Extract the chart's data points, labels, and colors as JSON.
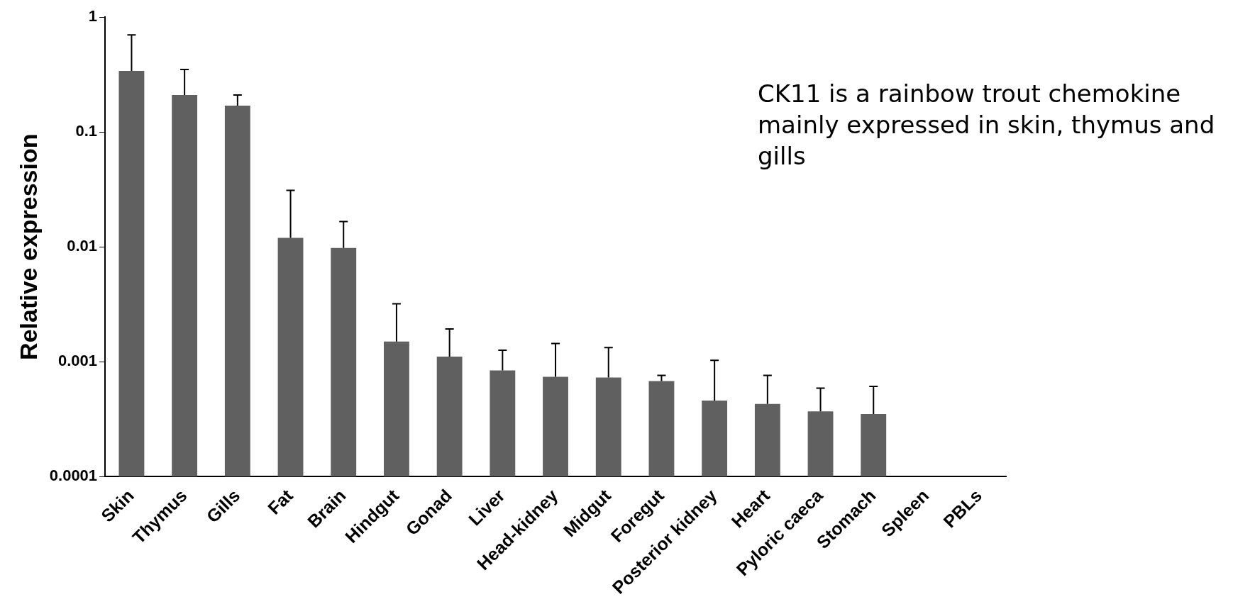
{
  "chart_data": {
    "type": "bar",
    "ylabel": "Relative expression",
    "categories": [
      "Skin",
      "Thymus",
      "Gills",
      "Fat",
      "Brain",
      "Hindgut",
      "Gonad",
      "Liver",
      "Head-kidney",
      "Midgut",
      "Foregut",
      "Posterior kidney",
      "Heart",
      "Pyloric caeca",
      "Stomach",
      "Spleen",
      "PBLs"
    ],
    "values": [
      0.34,
      0.21,
      0.17,
      0.012,
      0.0098,
      0.0015,
      0.00111,
      0.00084,
      0.00074,
      0.00073,
      0.00068,
      0.00046,
      0.00043,
      0.00037,
      0.00035,
      0.0001,
      0.0001
    ],
    "errors": [
      [
        0.34,
        0.7
      ],
      [
        0.21,
        0.35
      ],
      [
        0.17,
        0.21
      ],
      [
        0.012,
        0.031
      ],
      [
        0.0098,
        0.0166
      ],
      [
        0.0015,
        0.0032
      ],
      [
        0.00111,
        0.00193
      ],
      [
        0.00084,
        0.00126
      ],
      [
        0.00074,
        0.00144
      ],
      [
        0.00073,
        0.00133
      ],
      [
        0.00068,
        0.00076
      ],
      [
        0.00046,
        0.00103
      ],
      [
        0.00043,
        0.00076
      ],
      [
        0.00037,
        0.00059
      ],
      [
        0.00035,
        0.00061
      ],
      null,
      null
    ],
    "color": "#606060",
    "log": true,
    "ylim": [
      0.0001,
      1
    ],
    "yticks": [
      0.0001,
      0.001,
      0.01,
      0.1,
      1
    ],
    "grid": false,
    "legend": false,
    "annotations": [
      "CK11 is a rainbow trout chemokine mainly expressed in skin, thymus and gills"
    ]
  }
}
